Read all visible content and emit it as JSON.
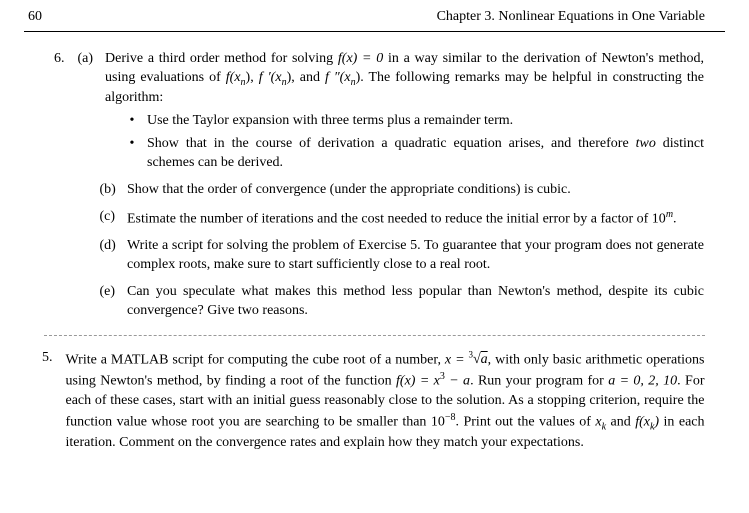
{
  "header": {
    "page_number": "60",
    "chapter": "Chapter 3.  Nonlinear Equations in One Variable"
  },
  "problem6": {
    "number": "6.",
    "a_label": "(a)",
    "a_pre": "Derive a third order method for solving ",
    "a_eq": "f(x) = 0",
    "a_mid1": " in a way similar to the derivation of Newton's method, using evaluations of ",
    "a_f": "f(x",
    "a_n": "n",
    "a_sep1": "), ",
    "a_fp": "f ′(x",
    "a_sep2": "), and ",
    "a_fpp": "f ″(x",
    "a_tail": "). The following remarks may be helpful in constructing the algorithm:",
    "bullet1": "Use the Taylor expansion with three terms plus a remainder term.",
    "bullet2_pre": "Show that in the course of derivation a quadratic equation arises, and therefore ",
    "bullet2_two": "two",
    "bullet2_post": " distinct schemes can be derived.",
    "b_label": "(b)",
    "b_text": "Show that the order of convergence (under the appropriate conditions) is cubic.",
    "c_label": "(c)",
    "c_pre": "Estimate the number of iterations and the cost needed to reduce the initial error by a factor of 10",
    "c_m": "m",
    "c_post": ".",
    "d_label": "(d)",
    "d_text": "Write a script for solving the problem of Exercise 5. To guarantee that your program does not generate complex roots, make sure to start sufficiently close to a real root.",
    "e_label": "(e)",
    "e_text": "Can you speculate what makes this method less popular than Newton's method, despite its cubic convergence? Give two reasons."
  },
  "problem5": {
    "number": "5.",
    "pre": "Write a MATLAB script for computing the cube root of a number, ",
    "x_eq": "x = ",
    "root_index": "3",
    "root_arg": "a",
    "mid1": ", with only basic arithmetic operations using Newton's method, by finding a root of the function ",
    "f_expr": "f(x) = x",
    "cube": "3",
    "minus_a": " − a",
    "mid2": ". Run your program for ",
    "a_vals": "a = 0, 2, 10",
    "mid3": ". For each of these cases, start with an initial guess reasonably close to the solution. As a stopping criterion, require the function value whose root you are searching to be smaller than 10",
    "neg8": "−8",
    "mid4": ". Print out the values of ",
    "xk": "x",
    "k": "k",
    "and": " and ",
    "fxk": "f(x",
    "close": ")",
    "tail": " in each iteration. Comment on the convergence rates and explain how they match your expectations."
  }
}
